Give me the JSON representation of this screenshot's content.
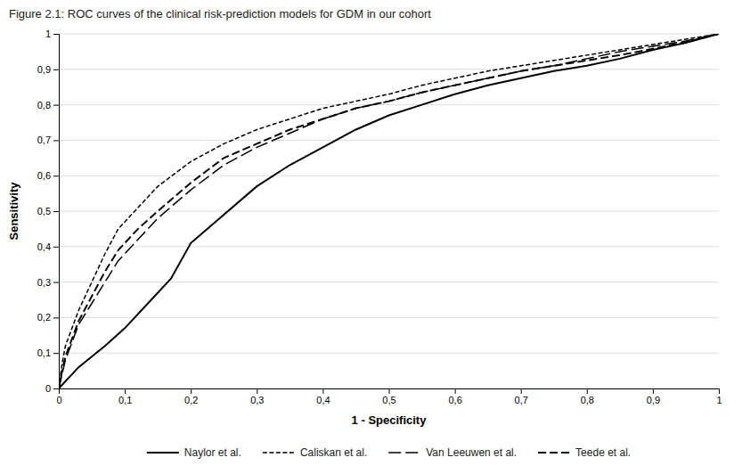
{
  "chart_data": {
    "type": "line",
    "title": "Figure 2.1: ROC curves of the clinical risk-prediction models for GDM in our cohort",
    "x_label": "1 - Specificity",
    "y_label": "Sensitivity",
    "xlim": [
      0,
      1
    ],
    "ylim": [
      0,
      1
    ],
    "xticks": [
      0,
      {
        "value": 0.1,
        "label": "0,1"
      },
      {
        "value": 0.2,
        "label": "0,2"
      },
      {
        "value": 0.3,
        "label": "0,3"
      },
      {
        "value": 0.4,
        "label": "0,4"
      },
      {
        "value": 0.5,
        "label": "0,5"
      },
      {
        "value": 0.6,
        "label": "0,6"
      },
      {
        "value": 0.7,
        "label": "0,7"
      },
      {
        "value": 0.8,
        "label": "0,8"
      },
      {
        "value": 0.9,
        "label": "0,9"
      },
      1
    ],
    "yticks": [
      0,
      {
        "value": 0.1,
        "label": "0,1"
      },
      {
        "value": 0.2,
        "label": "0,2"
      },
      {
        "value": 0.3,
        "label": "0,3"
      },
      {
        "value": 0.4,
        "label": "0,4"
      },
      {
        "value": 0.5,
        "label": "0,5"
      },
      {
        "value": 0.6,
        "label": "0,6"
      },
      {
        "value": 0.7,
        "label": "0,7"
      },
      {
        "value": 0.8,
        "label": "0,8"
      },
      {
        "value": 0.9,
        "label": "0,9"
      },
      1
    ],
    "grid": "y",
    "legend": "bottom",
    "series": [
      {
        "name": "Naylor et al.",
        "color": "#000000",
        "line_style": "solid",
        "x": [
          0,
          0.005,
          0.01,
          0.02,
          0.03,
          0.05,
          0.07,
          0.1,
          0.13,
          0.17,
          0.2,
          0.25,
          0.3,
          0.35,
          0.4,
          0.45,
          0.5,
          0.55,
          0.6,
          0.65,
          0.7,
          0.75,
          0.8,
          0.85,
          0.9,
          0.95,
          1.0
        ],
        "values": [
          0,
          0.01,
          0.02,
          0.04,
          0.06,
          0.09,
          0.12,
          0.17,
          0.23,
          0.31,
          0.41,
          0.49,
          0.57,
          0.63,
          0.68,
          0.73,
          0.77,
          0.8,
          0.83,
          0.855,
          0.875,
          0.895,
          0.91,
          0.93,
          0.955,
          0.975,
          1.0
        ]
      },
      {
        "name": "Caliskan et al.",
        "color": "#000000",
        "line_style": "densely_dashed",
        "x": [
          0,
          0.005,
          0.01,
          0.02,
          0.03,
          0.05,
          0.07,
          0.09,
          0.12,
          0.15,
          0.2,
          0.25,
          0.3,
          0.35,
          0.4,
          0.45,
          0.5,
          0.55,
          0.6,
          0.65,
          0.7,
          0.75,
          0.8,
          0.85,
          0.9,
          0.95,
          1.0
        ],
        "values": [
          0,
          0.07,
          0.12,
          0.17,
          0.22,
          0.3,
          0.38,
          0.45,
          0.51,
          0.57,
          0.64,
          0.69,
          0.73,
          0.76,
          0.79,
          0.81,
          0.83,
          0.855,
          0.875,
          0.895,
          0.91,
          0.925,
          0.94,
          0.955,
          0.97,
          0.985,
          1.0
        ]
      },
      {
        "name": "Van Leeuwen et al.",
        "color": "#000000",
        "line_style": "loosely_dashed",
        "x": [
          0,
          0.005,
          0.01,
          0.02,
          0.03,
          0.05,
          0.07,
          0.09,
          0.12,
          0.15,
          0.2,
          0.25,
          0.3,
          0.35,
          0.4,
          0.45,
          0.5,
          0.55,
          0.6,
          0.65,
          0.7,
          0.75,
          0.8,
          0.85,
          0.9,
          0.95,
          1.0
        ],
        "values": [
          0,
          0.04,
          0.08,
          0.13,
          0.18,
          0.24,
          0.3,
          0.36,
          0.42,
          0.48,
          0.56,
          0.63,
          0.68,
          0.72,
          0.76,
          0.79,
          0.81,
          0.835,
          0.855,
          0.875,
          0.895,
          0.91,
          0.93,
          0.95,
          0.965,
          0.98,
          1.0
        ]
      },
      {
        "name": "Teede et al.",
        "color": "#000000",
        "line_style": "medium_dashed",
        "x": [
          0,
          0.005,
          0.01,
          0.02,
          0.03,
          0.05,
          0.07,
          0.09,
          0.12,
          0.15,
          0.2,
          0.25,
          0.3,
          0.35,
          0.4,
          0.45,
          0.5,
          0.55,
          0.6,
          0.65,
          0.7,
          0.75,
          0.8,
          0.85,
          0.9,
          0.95,
          1.0
        ],
        "values": [
          0,
          0.05,
          0.09,
          0.14,
          0.19,
          0.26,
          0.33,
          0.39,
          0.45,
          0.5,
          0.58,
          0.65,
          0.69,
          0.73,
          0.76,
          0.79,
          0.81,
          0.835,
          0.855,
          0.875,
          0.895,
          0.91,
          0.925,
          0.94,
          0.958,
          0.977,
          1.0
        ]
      }
    ]
  }
}
